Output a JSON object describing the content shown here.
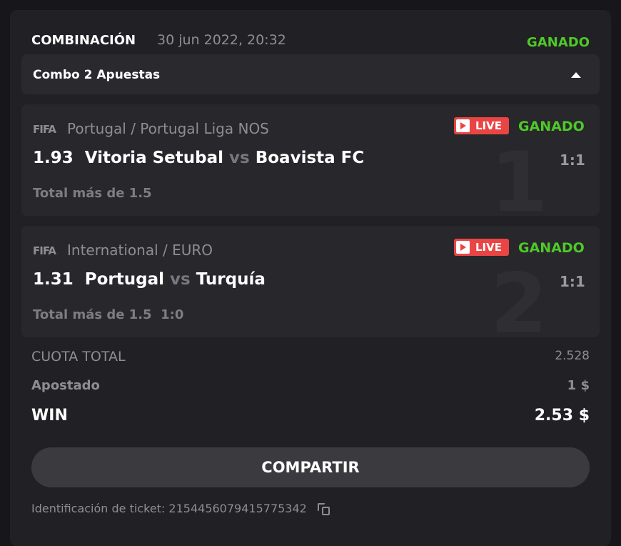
{
  "header": {
    "title": "COMBINACIÓN",
    "date": "30 jun 2022, 20:32",
    "status": "GANADO"
  },
  "combo": {
    "label": "Combo 2 Apuestas"
  },
  "bets": [
    {
      "index": "1",
      "sport_logo": "FIFA",
      "league": "Portugal / Portugal Liga NOS",
      "live": "LIVE",
      "status": "GANADO",
      "odds": "1.93",
      "home": "Vitoria Setubal",
      "vs": "vs",
      "away": "Boavista FC",
      "score": "1:1",
      "market": "Total más de 1.5",
      "market_extra": ""
    },
    {
      "index": "2",
      "sport_logo": "FIFA",
      "league": "International / EURO",
      "live": "LIVE",
      "status": "GANADO",
      "odds": "1.31",
      "home": "Portugal",
      "vs": "vs",
      "away": "Turquía",
      "score": "1:1",
      "market": "Total más de 1.5",
      "market_extra": "1:0"
    }
  ],
  "summary": {
    "total_odds_label": "CUOTA TOTAL",
    "total_odds": "2.528",
    "staked_label": "Apostado",
    "staked": "1 $",
    "win_label": "WIN",
    "win": "2.53 $"
  },
  "share_label": "COMPARTIR",
  "ticket": {
    "label": "Identificación de ticket:",
    "id": "2154456079415775342"
  },
  "colors": {
    "win_green": "#4fc927",
    "live_red": "#e94545"
  }
}
